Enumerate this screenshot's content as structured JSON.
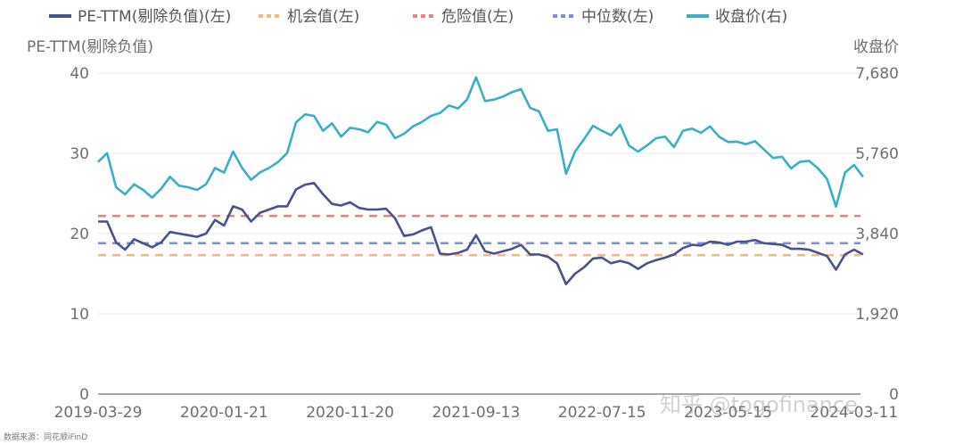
{
  "chart_data": {
    "type": "line",
    "legend_position": "top",
    "grid": true,
    "left_axis": {
      "title": "PE-TTM(剔除负值)",
      "range": [
        0,
        40
      ],
      "ticks": [
        "0",
        "10",
        "20",
        "30",
        "40"
      ]
    },
    "right_axis": {
      "title": "收盘价",
      "range": [
        0,
        7680
      ],
      "ticks": [
        "0",
        "1,920",
        "3,840",
        "5,760",
        "7,680"
      ]
    },
    "x_tick_labels": [
      "2019-03-29",
      "2020-01-21",
      "2020-11-20",
      "2021-09-13",
      "2022-07-15",
      "2023-05-15",
      "2024-03-11"
    ],
    "series": [
      {
        "name": "PE-TTM(剔除负值)(左)",
        "axis": "left",
        "style": "solid",
        "color": "#48528f",
        "values": [
          21.5,
          21.5,
          18.9,
          18.0,
          19.3,
          18.8,
          18.3,
          18.9,
          20.2,
          20.0,
          19.8,
          19.6,
          20.0,
          21.7,
          21.0,
          23.4,
          23.0,
          21.5,
          22.6,
          23.0,
          23.4,
          23.4,
          25.5,
          26.1,
          26.3,
          24.9,
          23.7,
          23.5,
          23.9,
          23.2,
          23.0,
          23.0,
          23.1,
          21.9,
          19.7,
          19.9,
          20.4,
          20.8,
          17.5,
          17.4,
          17.6,
          18.0,
          19.8,
          17.8,
          17.5,
          17.8,
          18.1,
          18.6,
          17.4,
          17.4,
          17.1,
          16.3,
          13.7,
          15.0,
          15.8,
          16.9,
          17.0,
          16.3,
          16.6,
          16.3,
          15.6,
          16.3,
          16.7,
          17.0,
          17.4,
          18.2,
          18.6,
          18.5,
          19.0,
          18.9,
          18.6,
          19.0,
          19.0,
          19.2,
          18.8,
          18.7,
          18.6,
          18.1,
          18.1,
          18.0,
          17.6,
          17.2,
          15.5,
          17.4,
          18.0,
          17.4
        ]
      },
      {
        "name": "机会值(左)",
        "axis": "left",
        "style": "dashed",
        "color": "#f5b97a",
        "constant": 17.3
      },
      {
        "name": "危险值(左)",
        "axis": "left",
        "style": "dashed",
        "color": "#e8837f",
        "constant": 22.2
      },
      {
        "name": "中位数(左)",
        "axis": "left",
        "style": "dashed",
        "color": "#7b8de0",
        "constant": 18.8
      },
      {
        "name": "收盘价(右)",
        "axis": "right",
        "style": "solid",
        "color": "#38afc6",
        "values": [
          5553,
          5767,
          4949,
          4779,
          5020,
          4885,
          4700,
          4913,
          5198,
          4985,
          4949,
          4885,
          5020,
          5412,
          5300,
          5802,
          5412,
          5127,
          5305,
          5412,
          5553,
          5767,
          6500,
          6692,
          6656,
          6300,
          6477,
          6158,
          6371,
          6335,
          6264,
          6513,
          6450,
          6122,
          6229,
          6406,
          6513,
          6656,
          6727,
          6905,
          6833,
          7046,
          7580,
          7010,
          7046,
          7118,
          7225,
          7296,
          6850,
          6762,
          6300,
          6335,
          5269,
          5800,
          6100,
          6420,
          6300,
          6193,
          6442,
          5945,
          5800,
          5950,
          6122,
          6158,
          5909,
          6300,
          6350,
          6250,
          6406,
          6158,
          6030,
          6040,
          5980,
          6050,
          5850,
          5650,
          5680,
          5400,
          5560,
          5580,
          5400,
          5150,
          4487,
          5300,
          5482,
          5198
        ]
      }
    ]
  },
  "source_note": "数据来源：同花顺iFinD",
  "watermark": "知乎 @togofinance"
}
